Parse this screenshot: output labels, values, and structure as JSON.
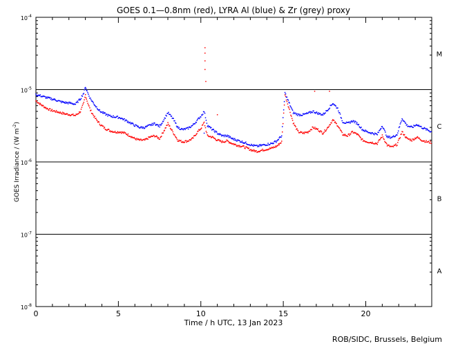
{
  "chart_data": {
    "type": "scatter",
    "title": "GOES 0.1—0.8nm (red), LYRA Al (blue) & Zr (grey) proxy",
    "xlabel": "Time / h UTC, 13 Jan 2023",
    "ylabel": "GOES Irradiance / (W m",
    "ylabel_sup": "-2",
    "ylabel_end": ")",
    "credit": "ROB/SIDC, Brussels, Belgium",
    "x_range": [
      0,
      24
    ],
    "y_range": [
      1e-08,
      0.0001
    ],
    "y_scale": "log",
    "x_ticks": [
      {
        "value": 0,
        "label": "0"
      },
      {
        "value": 5,
        "label": "5"
      },
      {
        "value": 10,
        "label": "10"
      },
      {
        "value": 15,
        "label": "15"
      },
      {
        "value": 20,
        "label": "20"
      }
    ],
    "y_ticks": [
      {
        "exp": -8,
        "label": "10",
        "sup": "-8"
      },
      {
        "exp": -7,
        "label": "10",
        "sup": "-7"
      },
      {
        "exp": -6,
        "label": "10",
        "sup": "-6"
      },
      {
        "exp": -5,
        "label": "10",
        "sup": "-5"
      },
      {
        "exp": -4,
        "label": "10",
        "sup": "-4"
      }
    ],
    "flare_classes": [
      {
        "label": "A",
        "center": 3.16e-08
      },
      {
        "label": "B",
        "center": 3.16e-07
      },
      {
        "label": "C",
        "center": 3.16e-06
      },
      {
        "label": "M",
        "center": 3.16e-05
      }
    ],
    "class_lines": [
      1e-07,
      1e-06,
      1e-05
    ],
    "series": [
      {
        "color": "#ff0000",
        "x": [
          0.0,
          0.3,
          0.6,
          0.9,
          1.2,
          1.5,
          1.8,
          2.1,
          2.4,
          2.7,
          2.9,
          3.0,
          3.1,
          3.3,
          3.6,
          3.9,
          4.2,
          4.5,
          4.8,
          5.1,
          5.4,
          5.7,
          6.0,
          6.3,
          6.6,
          6.9,
          7.2,
          7.5,
          7.8,
          8.0,
          8.3,
          8.6,
          8.9,
          9.2,
          9.5,
          9.8,
          10.0,
          10.2,
          10.4,
          10.7,
          11.0,
          11.3,
          11.6,
          11.9,
          12.2,
          12.5,
          12.8,
          13.1,
          13.4,
          13.7,
          14.0,
          14.3,
          14.6,
          14.9,
          15.1,
          15.3,
          15.6,
          15.9,
          16.2,
          16.5,
          16.8,
          17.1,
          17.4,
          17.7,
          18.0,
          18.3,
          18.6,
          18.9,
          19.2,
          19.5,
          19.8,
          20.1,
          20.4,
          20.7,
          21.0,
          21.3,
          21.6,
          21.9,
          22.2,
          22.5,
          22.8,
          23.1,
          23.4,
          23.7,
          24.0
        ],
        "y": [
          7e-06,
          6.2e-06,
          5.6e-06,
          5.2e-06,
          5e-06,
          4.8e-06,
          4.6e-06,
          4.5e-06,
          4.4e-06,
          5e-06,
          6.5e-06,
          8.5e-06,
          7e-06,
          5.2e-06,
          4e-06,
          3.3e-06,
          2.9e-06,
          2.7e-06,
          2.6e-06,
          2.6e-06,
          2.5e-06,
          2.3e-06,
          2.1e-06,
          2e-06,
          2e-06,
          2.2e-06,
          2.3e-06,
          2.1e-06,
          2.8e-06,
          3.4e-06,
          2.6e-06,
          2e-06,
          1.9e-06,
          1.95e-06,
          2.1e-06,
          2.6e-06,
          2.9e-06,
          3.5e-06,
          2.3e-06,
          2.2e-06,
          2e-06,
          1.9e-06,
          1.95e-06,
          1.8e-06,
          1.7e-06,
          1.65e-06,
          1.55e-06,
          1.45e-06,
          1.4e-06,
          1.45e-06,
          1.5e-06,
          1.55e-06,
          1.65e-06,
          1.9e-06,
          8.5e-06,
          6e-06,
          3.5e-06,
          2.6e-06,
          2.5e-06,
          2.6e-06,
          3e-06,
          2.8e-06,
          2.5e-06,
          3e-06,
          3.8e-06,
          3.2e-06,
          2.4e-06,
          2.3e-06,
          2.6e-06,
          2.4e-06,
          2e-06,
          1.9e-06,
          1.85e-06,
          1.8e-06,
          2.3e-06,
          1.7e-06,
          1.6e-06,
          1.75e-06,
          2.6e-06,
          2.1e-06,
          2e-06,
          2.2e-06,
          2e-06,
          1.9e-06,
          1.85e-06
        ]
      },
      {
        "color": "#0000ff",
        "x": [
          0.0,
          0.3,
          0.6,
          0.9,
          1.2,
          1.5,
          1.8,
          2.1,
          2.4,
          2.7,
          2.9,
          3.0,
          3.1,
          3.3,
          3.6,
          3.9,
          4.2,
          4.5,
          4.8,
          5.1,
          5.4,
          5.7,
          6.0,
          6.3,
          6.6,
          6.9,
          7.2,
          7.5,
          7.8,
          8.0,
          8.3,
          8.6,
          8.9,
          9.2,
          9.5,
          9.8,
          10.0,
          10.2,
          10.4,
          10.7,
          11.0,
          11.3,
          11.6,
          11.9,
          12.2,
          12.5,
          12.8,
          13.1,
          13.4,
          13.7,
          14.0,
          14.3,
          14.6,
          14.9,
          15.1,
          15.3,
          15.6,
          15.9,
          16.2,
          16.5,
          16.8,
          17.1,
          17.4,
          17.7,
          18.0,
          18.3,
          18.6,
          18.9,
          19.2,
          19.5,
          19.8,
          20.1,
          20.4,
          20.7,
          21.0,
          21.3,
          21.6,
          21.9,
          22.2,
          22.5,
          22.8,
          23.1,
          23.4,
          23.7,
          24.0
        ],
        "y": [
          8.5e-06,
          8.2e-06,
          7.8e-06,
          7.5e-06,
          7.2e-06,
          6.8e-06,
          6.6e-06,
          6.5e-06,
          6.3e-06,
          7.5e-06,
          9e-06,
          1.1e-05,
          9.5e-06,
          7.5e-06,
          6e-06,
          5e-06,
          4.6e-06,
          4.3e-06,
          4.2e-06,
          4.1e-06,
          3.8e-06,
          3.5e-06,
          3.2e-06,
          3e-06,
          3e-06,
          3.2e-06,
          3.4e-06,
          3.1e-06,
          4e-06,
          4.8e-06,
          4e-06,
          3e-06,
          2.8e-06,
          2.9e-06,
          3.2e-06,
          3.8e-06,
          4.3e-06,
          5e-06,
          3.2e-06,
          2.8e-06,
          2.5e-06,
          2.3e-06,
          2.3e-06,
          2.1e-06,
          2e-06,
          1.9e-06,
          1.8e-06,
          1.7e-06,
          1.65e-06,
          1.7e-06,
          1.75e-06,
          1.8e-06,
          1.95e-06,
          2.3e-06,
          9e-06,
          7e-06,
          4.8e-06,
          4.5e-06,
          4.5e-06,
          4.7e-06,
          5e-06,
          4.7e-06,
          4.5e-06,
          5.3e-06,
          6.5e-06,
          5.5e-06,
          3.6e-06,
          3.4e-06,
          3.7e-06,
          3.4e-06,
          2.8e-06,
          2.6e-06,
          2.5e-06,
          2.4e-06,
          3.2e-06,
          2.2e-06,
          2.2e-06,
          2.4e-06,
          4e-06,
          3.2e-06,
          3e-06,
          3.3e-06,
          3e-06,
          2.8e-06,
          2.6e-06
        ]
      }
    ],
    "outliers": [
      {
        "x": 10.25,
        "y": 3.8e-05,
        "color": "#ff0000"
      },
      {
        "x": 10.25,
        "y": 3.2e-05,
        "color": "#ff0000"
      },
      {
        "x": 10.25,
        "y": 2.5e-05,
        "color": "#ff0000"
      },
      {
        "x": 10.25,
        "y": 1.9e-05,
        "color": "#ff0000"
      },
      {
        "x": 10.3,
        "y": 1.3e-05,
        "color": "#ff0000"
      },
      {
        "x": 10.2,
        "y": 2.5e-06,
        "color": "#0000ff"
      },
      {
        "x": 16.9,
        "y": 9.5e-06,
        "color": "#ff0000"
      },
      {
        "x": 17.8,
        "y": 9.5e-06,
        "color": "#ff0000"
      },
      {
        "x": 11.0,
        "y": 4.5e-06,
        "color": "#ff0000"
      }
    ]
  }
}
